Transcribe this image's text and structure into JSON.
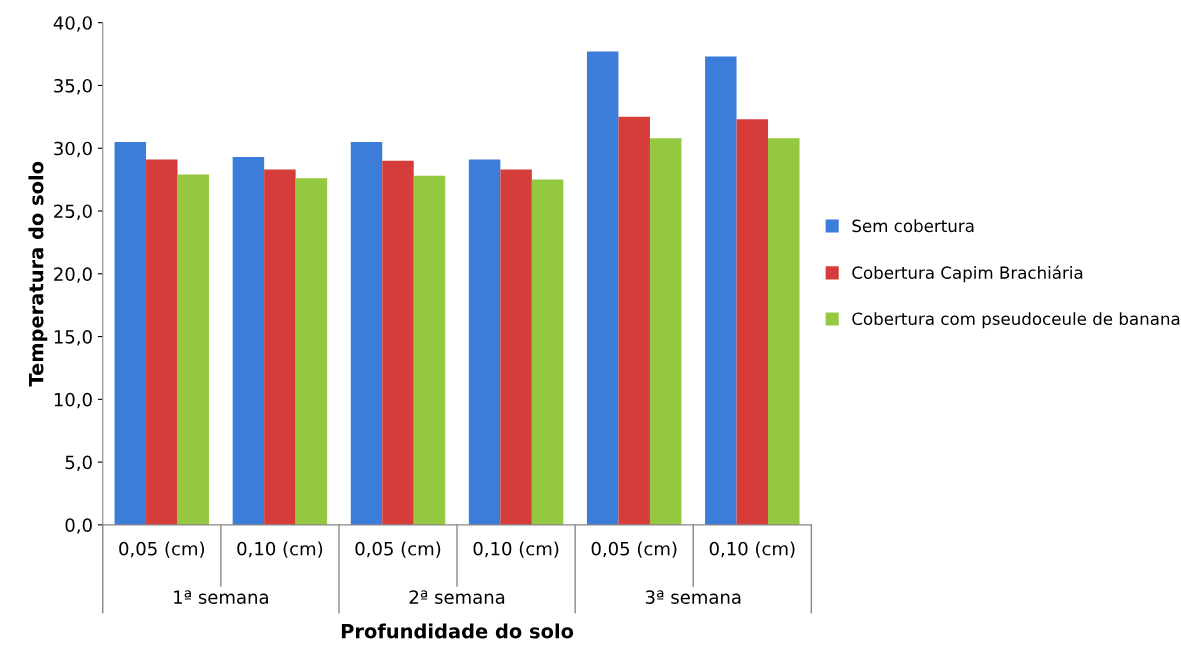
{
  "chart_data": {
    "type": "bar",
    "xlabel": "Profundidade do solo",
    "ylabel": "Temperatura do solo",
    "categories": [
      "0,05 (cm)",
      "0,10 (cm)",
      "0,05 (cm)",
      "0,10 (cm)",
      "0,05 (cm)",
      "0,10 (cm)"
    ],
    "annotations": [
      "1ª semana",
      "2ª semana",
      "3ª semana"
    ],
    "series": [
      {
        "name": "Sem cobertura",
        "color": "#3b7dd8",
        "values": [
          30.5,
          29.3,
          30.5,
          29.1,
          37.7,
          37.3
        ]
      },
      {
        "name": "Cobertura Capim Brachiária",
        "color": "#d63c3a",
        "values": [
          29.1,
          28.3,
          29.0,
          28.3,
          32.5,
          32.3
        ]
      },
      {
        "name": "Cobertura com pseudoceule de banana",
        "color": "#94c840",
        "values": [
          27.9,
          27.6,
          27.8,
          27.5,
          30.8,
          30.8
        ]
      }
    ],
    "ylim": [
      0,
      40
    ],
    "yticks": [
      {
        "value": 0,
        "label": "0,0"
      },
      {
        "value": 5,
        "label": "5,0"
      },
      {
        "value": 10,
        "label": "10,0"
      },
      {
        "value": 15,
        "label": "15,0"
      },
      {
        "value": 20,
        "label": "20,0"
      },
      {
        "value": 25,
        "label": "25,0"
      },
      {
        "value": 30,
        "label": "30,0"
      },
      {
        "value": 35,
        "label": "35,0"
      },
      {
        "value": 40,
        "label": "40,0"
      }
    ],
    "grid": false,
    "legend": "right"
  }
}
